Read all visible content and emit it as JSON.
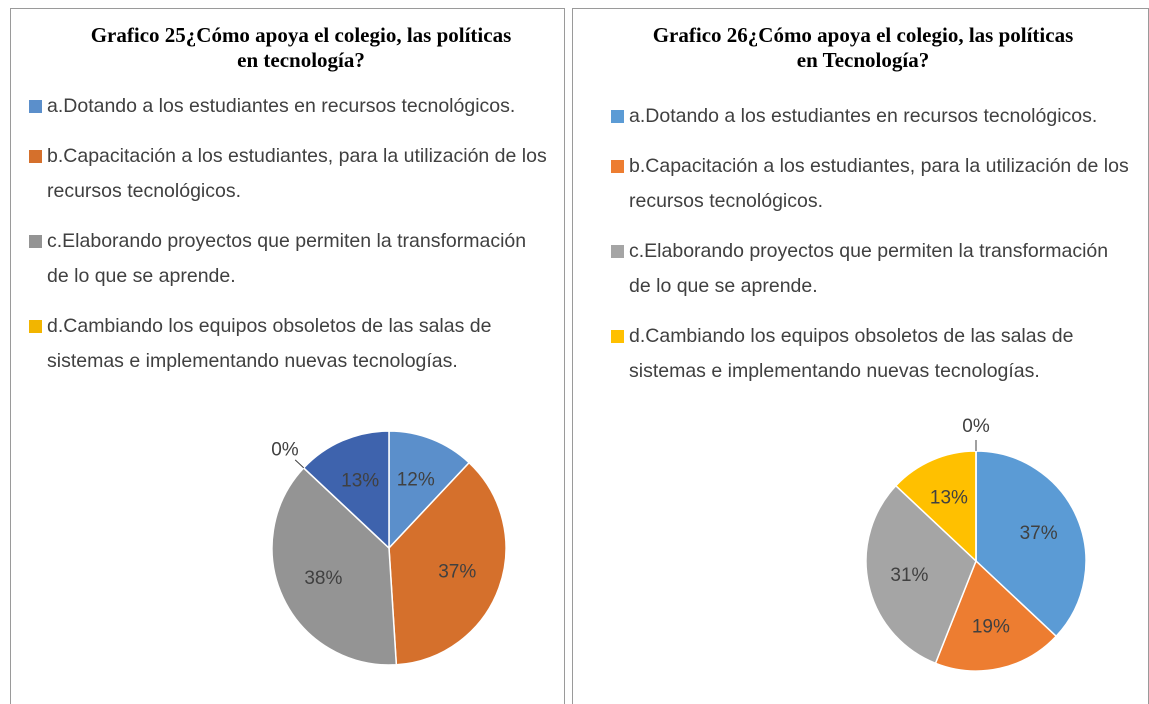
{
  "chart_data": [
    {
      "type": "pie",
      "title": "Grafico 25¿Cómo apoya el colegio, las políticas en tecnología?",
      "categories": [
        "a.Dotando a los estudiantes en recursos tecnológicos.",
        "b.Capacitación a los estudiantes, para la utilización de los recursos tecnológicos.",
        "c.Elaborando proyectos que permiten la transformación de lo que se aprende.",
        "d.Cambiando los equipos obsoletos de las salas de sistemas e implementando nuevas tecnologías.",
        null
      ],
      "values": [
        12,
        37,
        38,
        0,
        13
      ],
      "value_labels": [
        "12%",
        "37%",
        "38%",
        "0%",
        "13%"
      ],
      "colors": [
        "#5b8fcb",
        "#d5702c",
        "#949494",
        "#f2b500",
        "#3e63ad"
      ]
    },
    {
      "type": "pie",
      "title": "Grafico 26¿Cómo apoya el colegio, las políticas en Tecnología?",
      "categories": [
        "a.Dotando a los estudiantes en recursos tecnológicos.",
        "b.Capacitación a los estudiantes, para la utilización de los recursos tecnológicos.",
        "c.Elaborando proyectos que permiten la transformación de lo que se aprende.",
        "d.Cambiando los equipos obsoletos de las salas de sistemas e implementando nuevas tecnologías.",
        null
      ],
      "values": [
        37,
        19,
        31,
        13,
        0
      ],
      "value_labels": [
        "37%",
        "19%",
        "31%",
        "13%",
        "0%"
      ],
      "colors": [
        "#5b9bd5",
        "#ed7d31",
        "#a5a5a5",
        "#ffc000",
        "#4472c4"
      ]
    }
  ]
}
